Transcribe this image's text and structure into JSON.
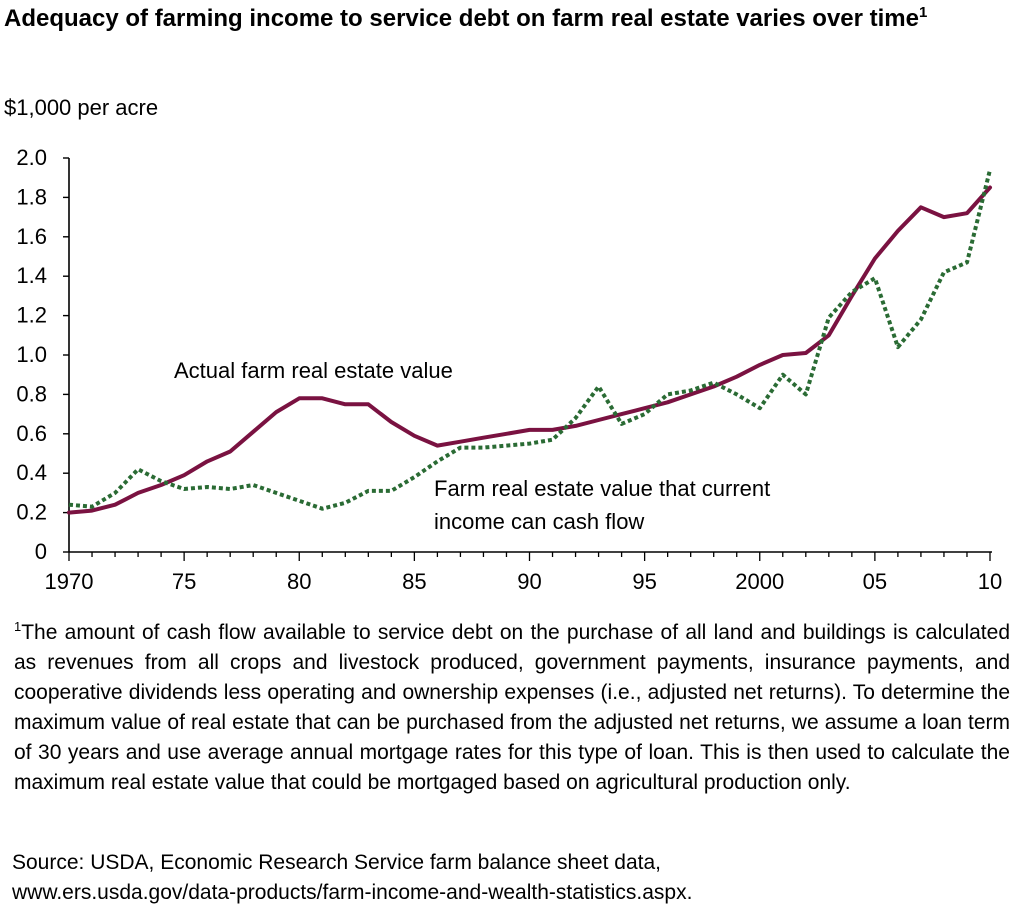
{
  "title": {
    "text": "Adequacy of farming income to service debt on farm real estate varies over time",
    "footnote_mark": "1"
  },
  "unit_label": "$1,000 per acre",
  "chart_data": {
    "type": "line",
    "title": "Adequacy of farming income to service debt on farm real estate varies over time",
    "ylabel": "$1,000 per acre",
    "xlabel": "",
    "xlim": [
      1970,
      2010
    ],
    "ylim": [
      0,
      2.0
    ],
    "y_ticks": [
      0,
      0.2,
      0.4,
      0.6,
      0.8,
      1.0,
      1.2,
      1.4,
      1.6,
      1.8,
      2.0
    ],
    "y_tick_labels": [
      "0",
      "0.2",
      "0.4",
      "0.6",
      "0.8",
      "1.0",
      "1.2",
      "1.4",
      "1.6",
      "1.8",
      "2.0"
    ],
    "x_ticks": [
      1970,
      1975,
      1980,
      1985,
      1990,
      1995,
      2000,
      2005,
      2010
    ],
    "x_tick_labels": [
      "1970",
      "75",
      "80",
      "85",
      "90",
      "95",
      "2000",
      "05",
      "10"
    ],
    "grid": false,
    "legend": "none (series labeled directly on chart)",
    "x": [
      1970,
      1971,
      1972,
      1973,
      1974,
      1975,
      1976,
      1977,
      1978,
      1979,
      1980,
      1981,
      1982,
      1983,
      1984,
      1985,
      1986,
      1987,
      1988,
      1989,
      1990,
      1991,
      1992,
      1993,
      1994,
      1995,
      1996,
      1997,
      1998,
      1999,
      2000,
      2001,
      2002,
      2003,
      2004,
      2005,
      2006,
      2007,
      2008,
      2009,
      2010
    ],
    "series": [
      {
        "name": "Actual farm real estate value",
        "color": "#7a1241",
        "style": "solid",
        "values": [
          0.2,
          0.21,
          0.24,
          0.3,
          0.34,
          0.39,
          0.46,
          0.51,
          0.61,
          0.71,
          0.78,
          0.78,
          0.75,
          0.75,
          0.66,
          0.59,
          0.54,
          0.56,
          0.58,
          0.6,
          0.62,
          0.62,
          0.64,
          0.67,
          0.7,
          0.73,
          0.76,
          0.8,
          0.84,
          0.89,
          0.95,
          1.0,
          1.01,
          1.1,
          1.3,
          1.49,
          1.63,
          1.75,
          1.7,
          1.72,
          1.85
        ]
      },
      {
        "name": "Farm real estate value that current income can cash flow",
        "color": "#2a6b34",
        "style": "dotted",
        "values": [
          0.24,
          0.23,
          0.3,
          0.42,
          0.36,
          0.32,
          0.33,
          0.32,
          0.34,
          0.3,
          0.26,
          0.22,
          0.25,
          0.31,
          0.31,
          0.38,
          0.46,
          0.53,
          0.53,
          0.54,
          0.55,
          0.57,
          0.68,
          0.84,
          0.65,
          0.7,
          0.8,
          0.82,
          0.86,
          0.8,
          0.73,
          0.9,
          0.8,
          1.19,
          1.32,
          1.39,
          1.04,
          1.18,
          1.42,
          1.47,
          1.94
        ]
      }
    ]
  },
  "labels": {
    "actual": "Actual farm real estate value",
    "cashflow_line1": "Farm real estate value that current",
    "cashflow_line2": "income can cash flow"
  },
  "footnote": {
    "mark": "1",
    "text": "The amount of cash flow available to service debt on the purchase of all land and buildings is calculated as revenues from all crops and livestock produced, government payments, insurance payments, and cooperative dividends less operating and ownership expenses (i.e., adjusted net returns). To determine the maximum value of real estate that can be purchased from the adjusted net returns, we assume a loan term of 30 years and use average annual mortgage rates for this type of loan. This is then used to calculate the maximum real estate value that could be mortgaged based on agricultural production only."
  },
  "source": {
    "line1": "Source: USDA, Economic Research Service farm balance sheet data,",
    "line2": "www.ers.usda.gov/data-products/farm-income-and-wealth-statistics.aspx."
  }
}
